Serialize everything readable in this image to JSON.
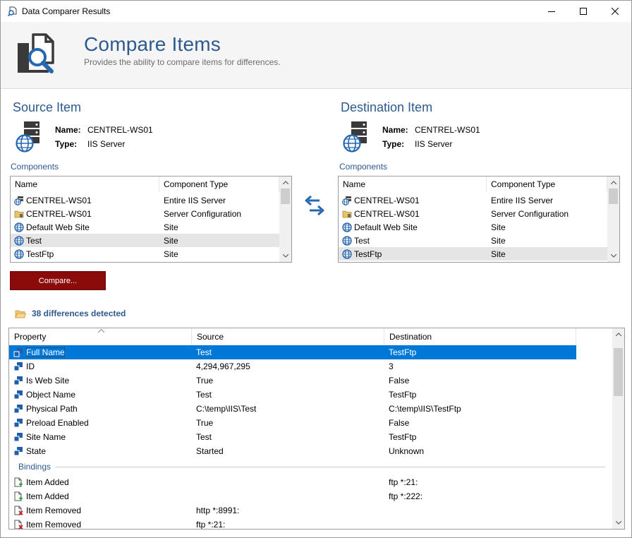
{
  "window": {
    "title": "Data Comparer Results"
  },
  "header": {
    "title": "Compare Items",
    "subtitle": "Provides the ability to compare items for differences."
  },
  "source": {
    "section_title": "Source Item",
    "name_label": "Name:",
    "name_value": "CENTREL-WS01",
    "type_label": "Type:",
    "type_value": "IIS Server",
    "components_label": "Components",
    "columns": [
      "Name",
      "Component Type"
    ],
    "rows": [
      {
        "name": "CENTREL-WS01",
        "type": "Entire IIS Server",
        "icon": "iis-server-icon"
      },
      {
        "name": "CENTREL-WS01",
        "type": "Server Configuration",
        "icon": "server-config-icon"
      },
      {
        "name": "Default Web Site",
        "type": "Site",
        "icon": "globe-icon"
      },
      {
        "name": "Test",
        "type": "Site",
        "icon": "globe-icon"
      },
      {
        "name": "TestFtp",
        "type": "Site",
        "icon": "globe-icon"
      }
    ],
    "selected_index": 3
  },
  "destination": {
    "section_title": "Destination Item",
    "name_label": "Name:",
    "name_value": "CENTREL-WS01",
    "type_label": "Type:",
    "type_value": "IIS Server",
    "components_label": "Components",
    "columns": [
      "Name",
      "Component Type"
    ],
    "rows": [
      {
        "name": "CENTREL-WS01",
        "type": "Entire IIS Server",
        "icon": "iis-server-icon"
      },
      {
        "name": "CENTREL-WS01",
        "type": "Server Configuration",
        "icon": "server-config-icon"
      },
      {
        "name": "Default Web Site",
        "type": "Site",
        "icon": "globe-icon"
      },
      {
        "name": "Test",
        "type": "Site",
        "icon": "globe-icon"
      },
      {
        "name": "TestFtp",
        "type": "Site",
        "icon": "globe-icon"
      }
    ],
    "selected_index": 4
  },
  "compare_button": "Compare...",
  "differences": {
    "text": "38 differences detected"
  },
  "properties": {
    "columns": [
      "Property",
      "Source",
      "Destination"
    ],
    "rows": [
      {
        "property": "Full Name",
        "source": "Test",
        "destination": "TestFtp",
        "icon": "property-icon"
      },
      {
        "property": "ID",
        "source": "4,294,967,295",
        "destination": "3",
        "icon": "property-icon"
      },
      {
        "property": "Is Web Site",
        "source": "True",
        "destination": "False",
        "icon": "property-icon"
      },
      {
        "property": "Object Name",
        "source": "Test",
        "destination": "TestFtp",
        "icon": "property-icon"
      },
      {
        "property": "Physical Path",
        "source": "C:\\temp\\IIS\\Test",
        "destination": "C:\\temp\\IIS\\TestFtp",
        "icon": "property-icon"
      },
      {
        "property": "Preload Enabled",
        "source": "True",
        "destination": "False",
        "icon": "property-icon"
      },
      {
        "property": "Site Name",
        "source": "Test",
        "destination": "TestFtp",
        "icon": "property-icon"
      },
      {
        "property": "State",
        "source": "Started",
        "destination": "Unknown",
        "icon": "property-icon"
      }
    ],
    "group": "Bindings",
    "group_rows": [
      {
        "property": "Item Added",
        "source": "",
        "destination": "ftp *:21:",
        "icon": "item-added-icon"
      },
      {
        "property": "Item Added",
        "source": "",
        "destination": "ftp *:222:",
        "icon": "item-added-icon"
      },
      {
        "property": "Item Removed",
        "source": "http *:8991:",
        "destination": "",
        "icon": "item-removed-icon"
      },
      {
        "property": "Item Removed",
        "source": "ftp *:21:",
        "destination": "",
        "icon": "item-removed-icon"
      }
    ],
    "selected_index": 0
  },
  "colors": {
    "accent": "#2d5a8f",
    "compare_button": "#8b0a0a",
    "selection": "#0078d7"
  }
}
